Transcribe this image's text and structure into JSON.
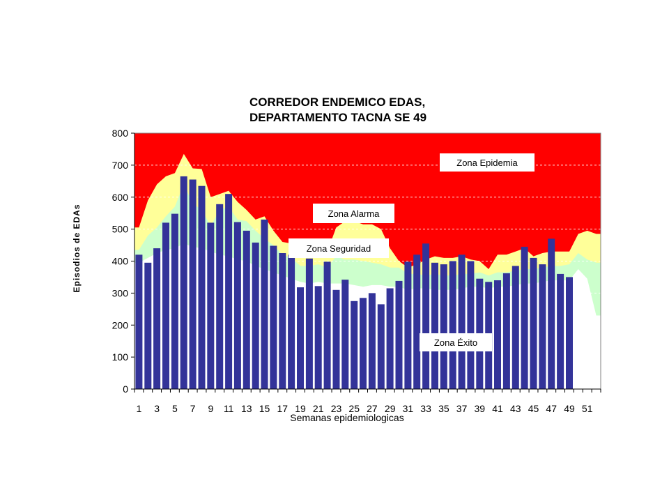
{
  "chart_data": {
    "type": "bar",
    "title_lines": [
      "CORREDOR ENDEMICO EDAS,",
      "DEPARTAMENTO TACNA SE 49"
    ],
    "xlabel": "Semanas epidemiologicas",
    "ylabel": "Episodios de EDAs",
    "ylim": [
      0,
      800
    ],
    "yticks": [
      0,
      100,
      200,
      300,
      400,
      500,
      600,
      700,
      800
    ],
    "x": [
      1,
      2,
      3,
      4,
      5,
      6,
      7,
      8,
      9,
      10,
      11,
      12,
      13,
      14,
      15,
      16,
      17,
      18,
      19,
      20,
      21,
      22,
      23,
      24,
      25,
      26,
      27,
      28,
      29,
      30,
      31,
      32,
      33,
      34,
      35,
      36,
      37,
      38,
      39,
      40,
      41,
      42,
      43,
      44,
      45,
      46,
      47,
      48,
      49,
      50,
      51,
      52
    ],
    "xtick_labels": [
      "1",
      "3",
      "5",
      "7",
      "9",
      "11",
      "13",
      "15",
      "17",
      "19",
      "21",
      "23",
      "25",
      "27",
      "29",
      "31",
      "33",
      "35",
      "37",
      "39",
      "41",
      "43",
      "45",
      "47",
      "49",
      "51"
    ],
    "grid": true,
    "colors": {
      "epidemia": "#ff0000",
      "alarma": "#ffff99",
      "seguridad": "#ccffcc",
      "exito": "#ffffff",
      "bars": "#333399"
    },
    "zones": [
      {
        "label": "Zona Epidemia"
      },
      {
        "label": "Zona Alarma"
      },
      {
        "label": "Zona Seguridad"
      },
      {
        "label": "Zona Éxito"
      }
    ],
    "zone_boundaries": {
      "alarma_upper": [
        505,
        590,
        640,
        665,
        675,
        735,
        690,
        688,
        600,
        610,
        620,
        585,
        560,
        530,
        540,
        495,
        460,
        455,
        420,
        440,
        465,
        430,
        505,
        525,
        525,
        515,
        515,
        500,
        440,
        400,
        380,
        390,
        405,
        415,
        410,
        410,
        415,
        405,
        400,
        375,
        420,
        420,
        430,
        440,
        415,
        425,
        430,
        430,
        430,
        485,
        495,
        485
      ],
      "seguridad_upper": [
        435,
        480,
        505,
        540,
        570,
        640,
        580,
        560,
        510,
        560,
        570,
        530,
        525,
        495,
        470,
        450,
        420,
        410,
        385,
        385,
        390,
        380,
        415,
        405,
        405,
        400,
        395,
        390,
        380,
        380,
        360,
        360,
        355,
        360,
        355,
        355,
        360,
        360,
        365,
        355,
        365,
        365,
        370,
        375,
        375,
        380,
        385,
        385,
        390,
        425,
        405,
        395
      ],
      "exito_upper": [
        395,
        410,
        425,
        435,
        440,
        455,
        445,
        440,
        430,
        420,
        415,
        405,
        400,
        385,
        375,
        365,
        355,
        345,
        335,
        330,
        335,
        330,
        330,
        330,
        325,
        320,
        325,
        325,
        320,
        320,
        310,
        315,
        315,
        310,
        310,
        310,
        315,
        320,
        320,
        315,
        320,
        320,
        325,
        330,
        330,
        335,
        340,
        340,
        340,
        375,
        345,
        230
      ]
    },
    "values": [
      420,
      395,
      440,
      520,
      548,
      665,
      655,
      635,
      520,
      578,
      610,
      522,
      495,
      458,
      530,
      448,
      425,
      420,
      318,
      408,
      322,
      398,
      310,
      342,
      275,
      285,
      300,
      265,
      315,
      338,
      398,
      420,
      455,
      395,
      390,
      400,
      420,
      400,
      345,
      335,
      340,
      362,
      385,
      445,
      410,
      390,
      470,
      360,
      350,
      null,
      null,
      null
    ]
  }
}
